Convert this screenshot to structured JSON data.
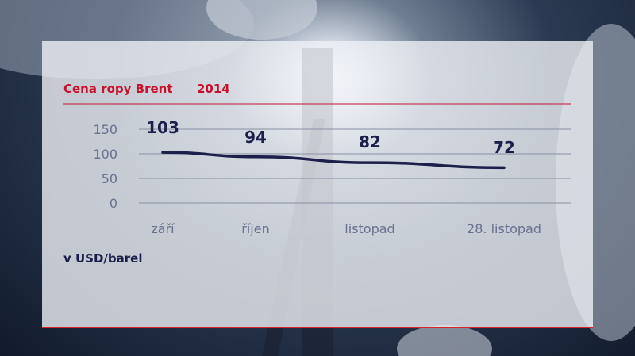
{
  "title": "Cena ropy Brent",
  "year": "2014",
  "unit_label": "v USD/barel",
  "colors": {
    "title_red": "#c8102e",
    "line_navy": "#1b1f4a",
    "grid": "#8a8fa3",
    "axis_text": "#6a7090"
  },
  "chart_data": {
    "type": "line",
    "title": "Cena ropy Brent",
    "subtitle": "2014",
    "ylabel": "v USD/barel",
    "xlabel": "",
    "categories": [
      "září",
      "říjen",
      "listopad",
      "28. listopad"
    ],
    "values": [
      103,
      94,
      82,
      72
    ],
    "data_labels": [
      "103",
      "94",
      "82",
      "72"
    ],
    "y_ticks": [
      "150",
      "100",
      "50",
      "0"
    ],
    "y_tick_values": [
      150,
      100,
      50,
      0
    ],
    "ylim": [
      0,
      150
    ],
    "grid": true,
    "legend": "none"
  }
}
